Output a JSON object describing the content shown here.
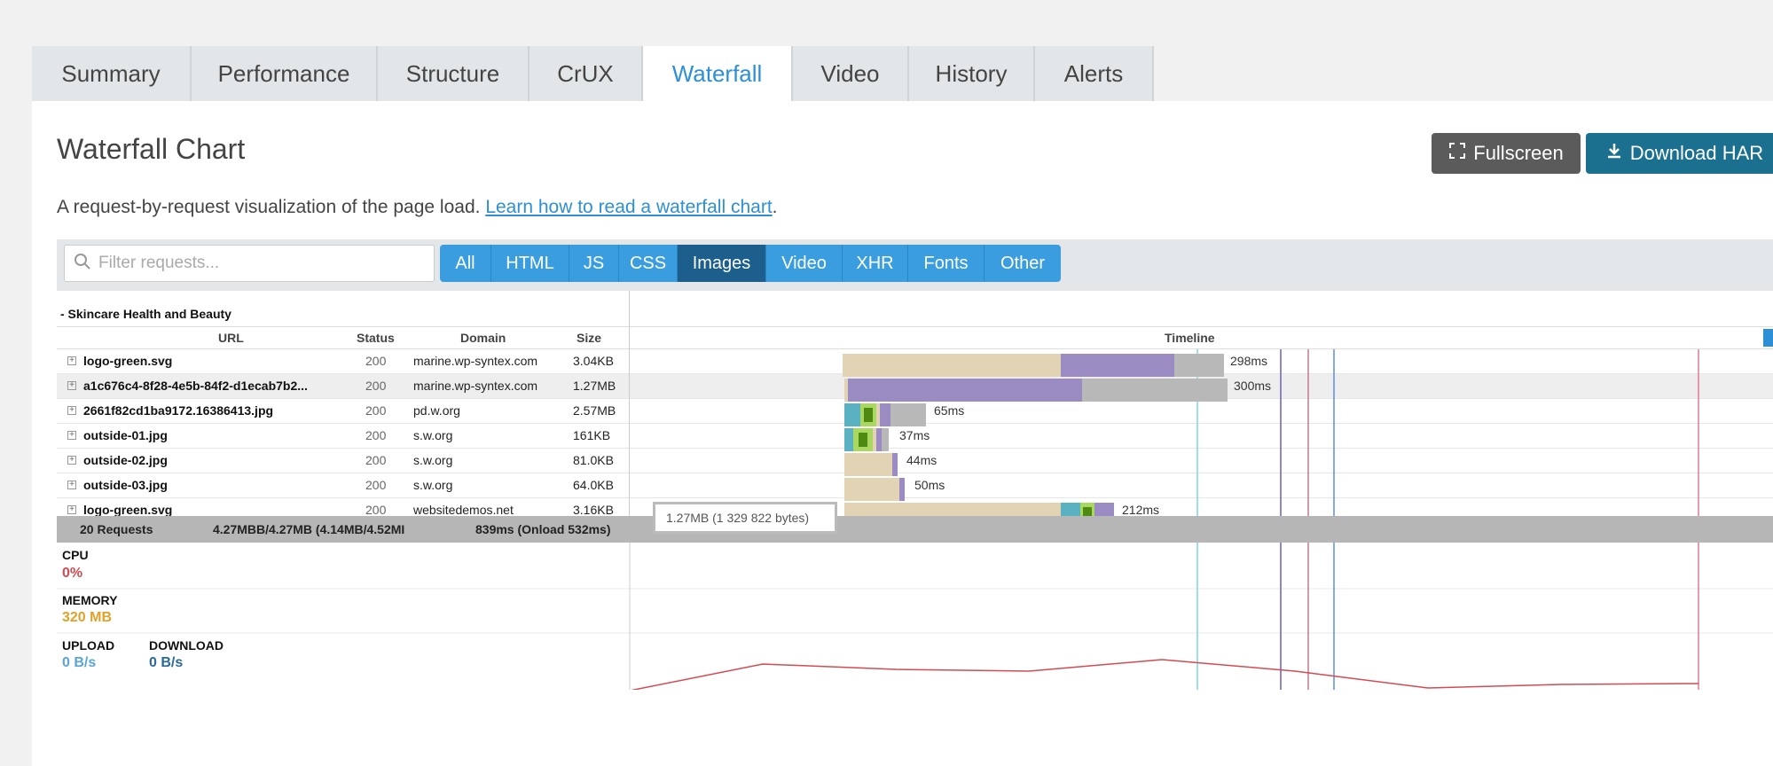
{
  "tabs": [
    {
      "label": "Summary"
    },
    {
      "label": "Performance"
    },
    {
      "label": "Structure"
    },
    {
      "label": "CrUX"
    },
    {
      "label": "Waterfall",
      "active": true
    },
    {
      "label": "Video"
    },
    {
      "label": "History"
    },
    {
      "label": "Alerts"
    }
  ],
  "title": "Waterfall Chart",
  "buttons": {
    "fullscreen": "Fullscreen",
    "download": "Download HAR"
  },
  "description": {
    "text": "A request-by-request visualization of the page load. ",
    "link": "Learn how to read a waterfall chart",
    "suffix": "."
  },
  "search": {
    "placeholder": "Filter requests..."
  },
  "filters": [
    {
      "label": "All"
    },
    {
      "label": "HTML"
    },
    {
      "label": "JS"
    },
    {
      "label": "CSS"
    },
    {
      "label": "Images",
      "active": true
    },
    {
      "label": "Video"
    },
    {
      "label": "XHR"
    },
    {
      "label": "Fonts"
    },
    {
      "label": "Other"
    }
  ],
  "group": "- Skincare Health and Beauty",
  "columns": {
    "url": "URL",
    "status": "Status",
    "domain": "Domain",
    "size": "Size",
    "timeline": "Timeline"
  },
  "requests": [
    {
      "url": "logo-green.svg",
      "status": "200",
      "domain": "marine.wp-syntex.com",
      "size": "3.04KB",
      "duration": "298ms"
    },
    {
      "url": "a1c676c4-8f28-4e5b-84f2-d1ecab7b2...",
      "status": "200",
      "domain": "marine.wp-syntex.com",
      "size": "1.27MB",
      "duration": "300ms"
    },
    {
      "url": "2661f82cd1ba9172.16386413.jpg",
      "status": "200",
      "domain": "pd.w.org",
      "size": "2.57MB",
      "duration": "65ms"
    },
    {
      "url": "outside-01.jpg",
      "status": "200",
      "domain": "s.w.org",
      "size": "161KB",
      "duration": "37ms"
    },
    {
      "url": "outside-02.jpg",
      "status": "200",
      "domain": "s.w.org",
      "size": "81.0KB",
      "duration": "44ms"
    },
    {
      "url": "outside-03.jpg",
      "status": "200",
      "domain": "s.w.org",
      "size": "64.0KB",
      "duration": "50ms"
    },
    {
      "url": "logo-green.svg",
      "status": "200",
      "domain": "websitedemos.net",
      "size": "3.16KB",
      "duration": "212ms"
    }
  ],
  "totals": {
    "requests": "20 Requests",
    "size": "4.27MBB/4.27MB  (4.14MB/4.52MI",
    "time": "839ms  (Onload 532ms)"
  },
  "tooltip": "1.27MB (1 329 822 bytes)",
  "metrics": {
    "cpu_label": "CPU",
    "cpu_value": "0%",
    "memory_label": "MEMORY",
    "memory_value": "320 MB",
    "upload_label": "UPLOAD",
    "upload_value": "0 B/s",
    "download_label": "DOWNLOAD",
    "download_value": "0 B/s"
  },
  "colors": {
    "accent": "#2d8fd6",
    "wait": "#e2d3b5",
    "receive": "#9a8bc2",
    "blocked": "#b8b8b8",
    "dns": "#5ab1c2",
    "connect": "#a8d860",
    "ssl": "#4e8a12",
    "cpu_line": "#d34b52",
    "memory_line": "#e0a128",
    "network_line": "#2a6a9a"
  }
}
